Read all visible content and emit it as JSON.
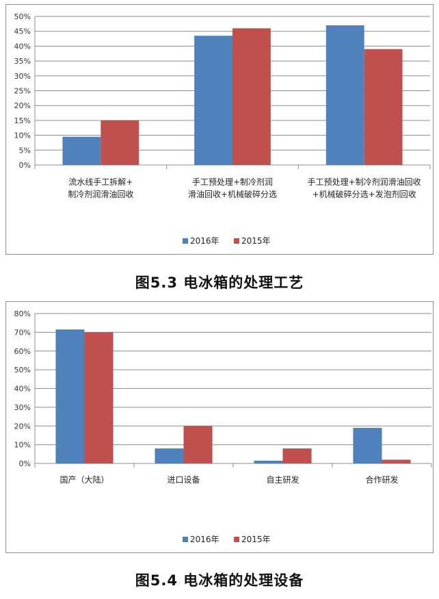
{
  "chart_data": [
    {
      "type": "bar",
      "caption": "图5.3 电冰箱的处理工艺",
      "categories": [
        [
          "流水线手工拆解+",
          "制冷剂润滑油回收"
        ],
        [
          "手工预处理+制冷剂润",
          "滑油回收+机械破碎分选"
        ],
        [
          "手工预处理+制冷剂润滑油回收",
          "+机械破碎分选+发泡剂回收"
        ]
      ],
      "series": [
        {
          "name": "2016年",
          "color": "#4F81BD",
          "values": [
            0.095,
            0.435,
            0.47
          ]
        },
        {
          "name": "2015年",
          "color": "#C0504D",
          "values": [
            0.15,
            0.46,
            0.39
          ]
        }
      ],
      "ylim": [
        0,
        0.5
      ],
      "yticks": [
        "0%",
        "5%",
        "10%",
        "15%",
        "20%",
        "25%",
        "30%",
        "35%",
        "40%",
        "45%",
        "50%"
      ],
      "grid": true,
      "legend": "bottom"
    },
    {
      "type": "bar",
      "caption": "图5.4 电冰箱的处理设备",
      "categories": [
        [
          "国产（大陆）"
        ],
        [
          "进口设备"
        ],
        [
          "自主研发"
        ],
        [
          "合作研发"
        ]
      ],
      "series": [
        {
          "name": "2016年",
          "color": "#4F81BD",
          "values": [
            0.715,
            0.08,
            0.015,
            0.19
          ]
        },
        {
          "name": "2015年",
          "color": "#C0504D",
          "values": [
            0.7,
            0.2,
            0.08,
            0.02
          ]
        }
      ],
      "ylim": [
        0,
        0.8
      ],
      "yticks": [
        "0%",
        "10%",
        "20%",
        "30%",
        "40%",
        "50%",
        "60%",
        "70%",
        "80%"
      ],
      "grid": true,
      "legend": "bottom"
    }
  ]
}
